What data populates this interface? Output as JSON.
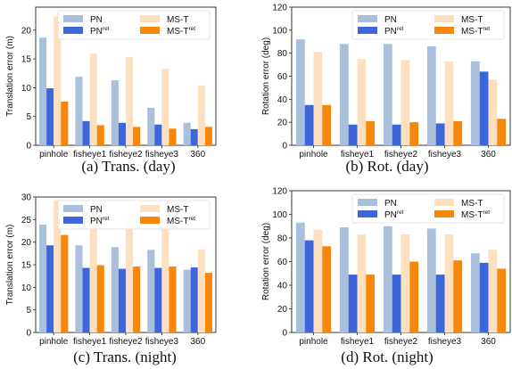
{
  "colors": {
    "PN": "#a9bfdc",
    "PN_ret": "#3d66d9",
    "MS_T": "#fde0bf",
    "MS_T_ret": "#f7870a"
  },
  "chart_data": [
    {
      "type": "bar",
      "caption": "(a) Trans. (day)",
      "ylabel": "Translation error (m)",
      "ylim": [
        0,
        24
      ],
      "yticks": [
        0,
        5,
        10,
        15,
        20
      ],
      "categories": [
        "pinhole",
        "fisheye1",
        "fisheye2",
        "fisheye3",
        "360"
      ],
      "series": [
        {
          "name": "PN",
          "values": [
            18.7,
            11.9,
            11.3,
            6.5,
            3.9
          ]
        },
        {
          "name": "PNret",
          "values": [
            9.9,
            4.2,
            3.9,
            3.6,
            2.8
          ]
        },
        {
          "name": "MS-T",
          "values": [
            22.4,
            15.9,
            15.3,
            13.3,
            10.4
          ]
        },
        {
          "name": "MS-Tret",
          "values": [
            7.6,
            3.5,
            3.2,
            2.9,
            3.2
          ]
        }
      ]
    },
    {
      "type": "bar",
      "caption": "(b) Rot. (day)",
      "ylabel": "Rotation error (deg)",
      "ylim": [
        0,
        120
      ],
      "yticks": [
        0,
        20,
        40,
        60,
        80,
        100,
        120
      ],
      "categories": [
        "pinhole",
        "fisheye1",
        "fisheye2",
        "fisheye3",
        "360"
      ],
      "series": [
        {
          "name": "PN",
          "values": [
            92,
            88,
            88,
            86,
            73
          ]
        },
        {
          "name": "PNret",
          "values": [
            35,
            18,
            18,
            19,
            64
          ]
        },
        {
          "name": "MS-T",
          "values": [
            81,
            75,
            74,
            73,
            57
          ]
        },
        {
          "name": "MS-Tret",
          "values": [
            35,
            21,
            20,
            21,
            23
          ]
        }
      ]
    },
    {
      "type": "bar",
      "caption": "(c) Trans. (night)",
      "ylabel": "Translation error (m)",
      "ylim": [
        0,
        30
      ],
      "yticks": [
        0,
        5,
        10,
        15,
        20,
        25,
        30
      ],
      "categories": [
        "pinhole",
        "fisheye1",
        "fisheye2",
        "fisheye3",
        "360"
      ],
      "series": [
        {
          "name": "PN",
          "values": [
            23.9,
            19.3,
            18.9,
            18.3,
            13.9
          ]
        },
        {
          "name": "PNret",
          "values": [
            19.3,
            14.3,
            14.1,
            14.3,
            14.4
          ]
        },
        {
          "name": "MS-T",
          "values": [
            29.3,
            25.9,
            25.3,
            24.6,
            18.4
          ]
        },
        {
          "name": "MS-Tret",
          "values": [
            21.6,
            14.9,
            14.6,
            14.6,
            13.2
          ]
        }
      ]
    },
    {
      "type": "bar",
      "caption": "(d) Rot. (night)",
      "ylabel": "Rotation error (deg)",
      "ylim": [
        0,
        120
      ],
      "yticks": [
        0,
        20,
        40,
        60,
        80,
        100,
        120
      ],
      "categories": [
        "pinhole",
        "fisheye1",
        "fisheye2",
        "fisheye3",
        "360"
      ],
      "series": [
        {
          "name": "PN",
          "values": [
            93,
            89,
            90,
            88,
            67
          ]
        },
        {
          "name": "PNret",
          "values": [
            78,
            49,
            49,
            49,
            59
          ]
        },
        {
          "name": "MS-T",
          "values": [
            87,
            83,
            83,
            83,
            70
          ]
        },
        {
          "name": "MS-Tret",
          "values": [
            73,
            49,
            60,
            61,
            54
          ]
        }
      ]
    }
  ]
}
